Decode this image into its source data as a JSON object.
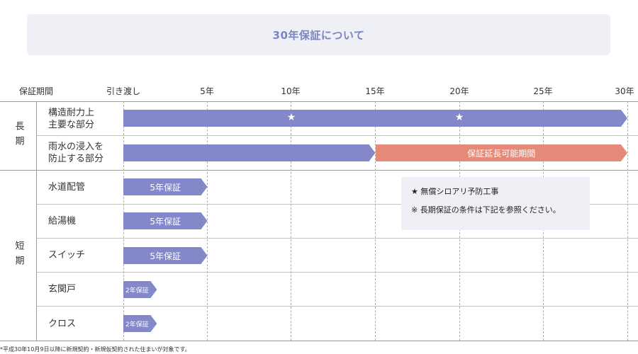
{
  "title": "30年保証について",
  "header": {
    "period_label": "保証期間",
    "ticks": [
      "引き渡し",
      "5年",
      "10年",
      "15年",
      "20年",
      "25年",
      "30年"
    ]
  },
  "groups": {
    "long": "長期",
    "short": "短期"
  },
  "rows": [
    {
      "label_line1": "構造耐力上",
      "label_line2": "主要な部分"
    },
    {
      "label_line1": "雨水の浸入を",
      "label_line2": "防止する部分"
    },
    {
      "label_line1": "水道配管"
    },
    {
      "label_line1": "給湯機"
    },
    {
      "label_line1": "スイッチ"
    },
    {
      "label_line1": "玄関戸"
    },
    {
      "label_line1": "クロス"
    }
  ],
  "bars": {
    "extension_label": "保証延長可能期間",
    "five_year_label": "5年保証",
    "two_year_label": "2年保証",
    "star": "★"
  },
  "chart_data": {
    "type": "bar",
    "x_unit": "年",
    "xlim": [
      0,
      30
    ],
    "x_ticks": [
      0,
      5,
      10,
      15,
      20,
      25,
      30
    ],
    "rows": [
      {
        "category": "構造耐力上主要な部分",
        "group": "長期",
        "segments": [
          {
            "start": 0,
            "end": 30,
            "color": "#8288c8"
          }
        ],
        "stars_at": [
          10,
          20
        ]
      },
      {
        "category": "雨水の浸入を防止する部分",
        "group": "長期",
        "segments": [
          {
            "start": 0,
            "end": 15,
            "color": "#8288c8"
          },
          {
            "start": 15,
            "end": 30,
            "color": "#e38b78",
            "label": "保証延長可能期間"
          }
        ]
      },
      {
        "category": "水道配管",
        "group": "短期",
        "segments": [
          {
            "start": 0,
            "end": 5,
            "color": "#8288c8",
            "label": "5年保証"
          }
        ]
      },
      {
        "category": "給湯機",
        "group": "短期",
        "segments": [
          {
            "start": 0,
            "end": 5,
            "color": "#8288c8",
            "label": "5年保証"
          }
        ]
      },
      {
        "category": "スイッチ",
        "group": "短期",
        "segments": [
          {
            "start": 0,
            "end": 5,
            "color": "#8288c8",
            "label": "5年保証"
          }
        ]
      },
      {
        "category": "玄関戸",
        "group": "短期",
        "segments": [
          {
            "start": 0,
            "end": 2,
            "color": "#8288c8",
            "label": "2年保証"
          }
        ]
      },
      {
        "category": "クロス",
        "group": "短期",
        "segments": [
          {
            "start": 0,
            "end": 2,
            "color": "#8288c8",
            "label": "2年保証"
          }
        ]
      }
    ]
  },
  "legend": {
    "line1": "★ 無償シロアリ予防工事",
    "line2": "※ 長期保証の条件は下記を参照ください。"
  },
  "footnote": "*平成30年10月9日以降に新規契約・新規仮契約された住まいが対象です。",
  "colors": {
    "accent_blue": "#8288c8",
    "accent_salmon": "#e38b78",
    "title_text": "#7b84c2",
    "panel_bg": "#eef0f6"
  }
}
